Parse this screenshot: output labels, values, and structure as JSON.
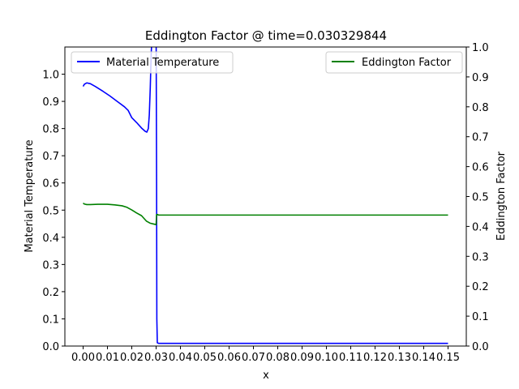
{
  "chart_data": {
    "type": "line",
    "title": "Eddington Factor @ time=0.030329844",
    "xlabel": "x",
    "ylabel_left": "Material Temperature",
    "ylabel_right": "Eddington Factor",
    "xlim": [
      -0.0075,
      0.1575
    ],
    "ylim_left": [
      0,
      1.1
    ],
    "ylim_right": [
      0,
      1.0
    ],
    "x_ticks": [
      0.0,
      0.01,
      0.02,
      0.03,
      0.04,
      0.05,
      0.06,
      0.07,
      0.08,
      0.09,
      0.1,
      0.11,
      0.12,
      0.13,
      0.14,
      0.15
    ],
    "x_tick_labels": [
      "0.00",
      "0.01",
      "0.02",
      "0.03",
      "0.04",
      "0.05",
      "0.06",
      "0.07",
      "0.08",
      "0.09",
      "0.10",
      "0.11",
      "0.12",
      "0.13",
      "0.14",
      "0.15"
    ],
    "y_ticks_left": [
      0.0,
      0.1,
      0.2,
      0.3,
      0.4,
      0.5,
      0.6,
      0.7,
      0.8,
      0.9,
      1.0
    ],
    "y_tick_labels_left": [
      "0.0",
      "0.1",
      "0.2",
      "0.3",
      "0.4",
      "0.5",
      "0.6",
      "0.7",
      "0.8",
      "0.9",
      "1.0"
    ],
    "y_ticks_right": [
      0.0,
      0.1,
      0.2,
      0.3,
      0.4,
      0.5,
      0.6,
      0.7,
      0.8,
      0.9,
      1.0
    ],
    "y_tick_labels_right": [
      "0.0",
      "0.1",
      "0.2",
      "0.3",
      "0.4",
      "0.5",
      "0.6",
      "0.7",
      "0.8",
      "0.9",
      "1.0"
    ],
    "legend_left": {
      "placement": "upper-left",
      "label": "Material Temperature",
      "color": "#0000ff"
    },
    "legend_right": {
      "placement": "upper-right",
      "label": "Eddington Factor",
      "color": "#008000"
    },
    "series": [
      {
        "name": "Material Temperature",
        "axis": "left",
        "color": "#0000ff",
        "x": [
          0.0,
          0.0005,
          0.0015,
          0.003,
          0.005,
          0.008,
          0.011,
          0.014,
          0.017,
          0.0185,
          0.02,
          0.022,
          0.024,
          0.0255,
          0.0262,
          0.0268,
          0.0272,
          0.0276,
          0.028,
          0.0284,
          0.029,
          0.03,
          0.0302,
          0.0303,
          0.0305,
          0.031,
          0.035,
          0.05,
          0.08,
          0.1,
          0.12,
          0.15
        ],
        "y": [
          0.955,
          0.963,
          0.968,
          0.965,
          0.955,
          0.938,
          0.92,
          0.9,
          0.88,
          0.867,
          0.84,
          0.822,
          0.802,
          0.79,
          0.787,
          0.8,
          0.85,
          0.95,
          1.08,
          1.15,
          1.2,
          1.2,
          0.6,
          0.1,
          0.012,
          0.01,
          0.01,
          0.01,
          0.01,
          0.01,
          0.01,
          0.01
        ]
      },
      {
        "name": "Eddington Factor",
        "axis": "right",
        "color": "#008000",
        "x": [
          0.0,
          0.0005,
          0.0015,
          0.003,
          0.006,
          0.01,
          0.013,
          0.016,
          0.018,
          0.02,
          0.022,
          0.024,
          0.026,
          0.0275,
          0.029,
          0.03,
          0.0302,
          0.0305,
          0.031,
          0.04,
          0.06,
          0.08,
          0.1,
          0.12,
          0.15
        ],
        "y": [
          0.478,
          0.475,
          0.473,
          0.473,
          0.474,
          0.474,
          0.472,
          0.469,
          0.464,
          0.455,
          0.445,
          0.436,
          0.418,
          0.411,
          0.408,
          0.406,
          0.44,
          0.44,
          0.438,
          0.438,
          0.438,
          0.438,
          0.438,
          0.438,
          0.438
        ]
      }
    ]
  }
}
